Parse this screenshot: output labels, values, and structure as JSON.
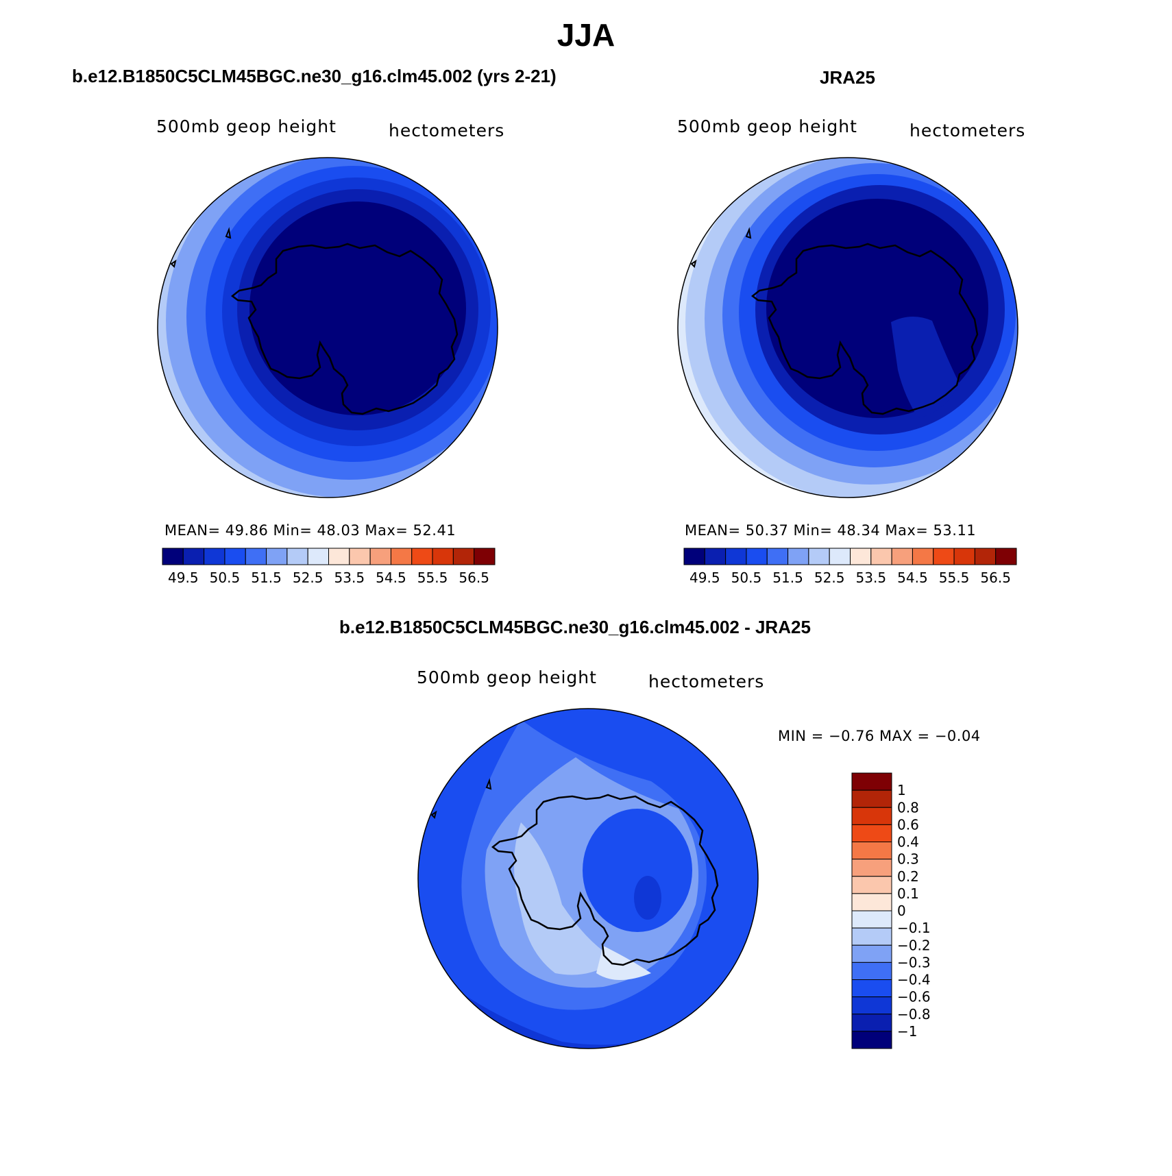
{
  "title": "JJA",
  "panels": {
    "model": {
      "title": "b.e12.B1850C5CLM45BGC.ne30_g16.clm45.002 (yrs 2-21)",
      "left_label": "500mb geop height",
      "right_label": "hectometers",
      "stats_text": "MEAN=   49.86   Min=   48.03   Max=   52.41"
    },
    "obs": {
      "title": "JRA25",
      "left_label": "500mb geop height",
      "right_label": "hectometers",
      "stats_text": "MEAN=   50.37   Min=   48.34   Max=   53.11"
    },
    "diff": {
      "title": "b.e12.B1850C5CLM45BGC.ne30_g16.clm45.002 - JRA25",
      "left_label": "500mb geop height",
      "right_label": "hectometers",
      "minmax_text": "MIN =  −0.76 MAX =  −0.04"
    }
  },
  "colorbar_main": {
    "labels": [
      "49.5",
      "50.5",
      "51.5",
      "52.5",
      "53.5",
      "54.5",
      "55.5",
      "56.5"
    ],
    "colors": [
      "#00007a",
      "#0a1fb0",
      "#0f37d6",
      "#1a4df0",
      "#3f6ff5",
      "#7fa2f5",
      "#b4cbf7",
      "#dde9fb",
      "#fde7d9",
      "#fbc7ad",
      "#f7a07c",
      "#f47846",
      "#ee4a16",
      "#d8360a",
      "#b22508",
      "#7e0004"
    ]
  },
  "colorbar_diff": {
    "labels": [
      "1",
      "0.8",
      "0.6",
      "0.4",
      "0.3",
      "0.2",
      "0.1",
      "0",
      "−0.1",
      "−0.2",
      "−0.3",
      "−0.4",
      "−0.6",
      "−0.8",
      "−1"
    ],
    "colors": [
      "#7e0004",
      "#b22508",
      "#d8360a",
      "#ee4a16",
      "#f47846",
      "#f7a07c",
      "#fbc7ad",
      "#fde7d9",
      "#dde9fb",
      "#b4cbf7",
      "#7fa2f5",
      "#3f6ff5",
      "#1a4df0",
      "#0f37d6",
      "#0a1fb0",
      "#00007a"
    ]
  }
}
